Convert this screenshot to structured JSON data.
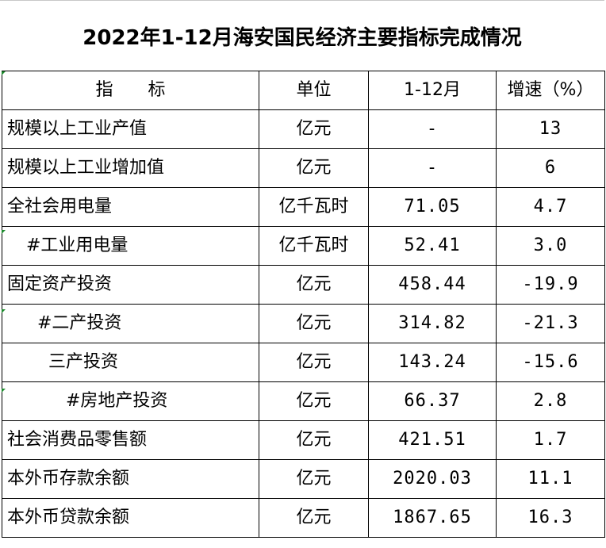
{
  "title": "2022年1-12月海安国民经济主要指标完成情况",
  "header": {
    "indicator": "指　　标",
    "unit": "单位",
    "period": "1-12月",
    "growth": "增速（%）"
  },
  "rows": [
    {
      "name": "规模以上工业产值",
      "unit": "亿元",
      "value": "-",
      "growth": "13",
      "indent": 0
    },
    {
      "name": "规模以上工业增加值",
      "unit": "亿元",
      "value": "-",
      "growth": "6",
      "indent": 0
    },
    {
      "name": "全社会用电量",
      "unit": "亿千瓦时",
      "value": "71.05",
      "growth": "4.7",
      "indent": 0
    },
    {
      "name": "#工业用电量",
      "unit": "亿千瓦时",
      "value": "52.41",
      "growth": "3.0",
      "indent": 1
    },
    {
      "name": "固定资产投资",
      "unit": "亿元",
      "value": "458.44",
      "growth": "-19.9",
      "indent": 0
    },
    {
      "name": "#二产投资",
      "unit": "亿元",
      "value": "314.82",
      "growth": "-21.3",
      "indent": 2
    },
    {
      "name": "三产投资",
      "unit": "亿元",
      "value": "143.24",
      "growth": "-15.6",
      "indent": 3
    },
    {
      "name": "#房地产投资",
      "unit": "亿元",
      "value": "66.37",
      "growth": "2.8",
      "indent": 4
    },
    {
      "name": "社会消费品零售额",
      "unit": "亿元",
      "value": "421.51",
      "growth": "1.7",
      "indent": 0
    },
    {
      "name": "本外币存款余额",
      "unit": "亿元",
      "value": "2020.03",
      "growth": "11.1",
      "indent": 0
    },
    {
      "name": "本外币贷款余额",
      "unit": "亿元",
      "value": "1867.65",
      "growth": "16.3",
      "indent": 0
    }
  ],
  "colors": {
    "border": "#000000",
    "cell_marker": "#1e8a2e"
  }
}
